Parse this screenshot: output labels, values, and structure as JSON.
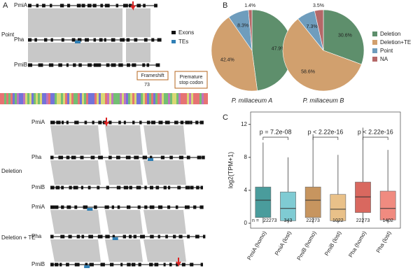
{
  "panel_a": {
    "label": "A",
    "groups": [
      {
        "name": "Point",
        "tracks": [
          "PmiA",
          "Pha",
          "PmiB"
        ]
      },
      {
        "name": "Deletion",
        "tracks": [
          "PmiA",
          "Pha",
          "PmiB"
        ]
      },
      {
        "name": "Deletion + TE",
        "tracks": [
          "PmiA",
          "Pha",
          "PmiB"
        ]
      }
    ],
    "legend": [
      "Exons",
      "TEs"
    ],
    "callouts": [
      "Frameshift",
      "Premature stop codon"
    ],
    "position": "73"
  },
  "chart_data": [
    {
      "type": "pie",
      "label": "B",
      "categories": [
        "Deletion",
        "Deletion+TE",
        "Point",
        "NA"
      ],
      "colors": [
        "#5e8f6c",
        "#d1a06e",
        "#6f9dbd",
        "#b56868"
      ],
      "series": [
        {
          "name": "P. miliaceum A",
          "values": [
            47.9,
            42.4,
            8.3,
            1.4
          ],
          "value_labels": [
            "47.9%",
            "42.4%",
            "8.3%",
            "1.4%"
          ]
        },
        {
          "name": "P. miliaceum B",
          "values": [
            30.6,
            58.6,
            7.3,
            3.5
          ],
          "value_labels": [
            "30.6%",
            "58.6%",
            "7.3%",
            "3.5%"
          ]
        }
      ]
    },
    {
      "type": "box",
      "label": "C",
      "ylabel": "log2(TPM+1)",
      "categories": [
        "PmiA (homo)",
        "PmiA (lost)",
        "PmiB (homo)",
        "PmiB (lost)",
        "Pha (homo)",
        "Pha (lost)"
      ],
      "colors": [
        "#4a9c9c",
        "#7fcbd3",
        "#c7955f",
        "#e9c189",
        "#d9685f",
        "#f08b80"
      ],
      "low": [
        0,
        0,
        0,
        0,
        0,
        0
      ],
      "q1": [
        0.7,
        0.3,
        0.7,
        0.3,
        1.3,
        0.4
      ],
      "median": [
        2.8,
        1.8,
        2.8,
        1.7,
        3.2,
        1.8
      ],
      "q3": [
        4.4,
        3.8,
        4.4,
        3.5,
        5.0,
        3.9
      ],
      "high": [
        9.8,
        8.0,
        10.8,
        8.3,
        11.6,
        8.9
      ],
      "count_prefix": "n =",
      "counts": [
        22273,
        343,
        22273,
        1022,
        22273,
        1402
      ],
      "annotations": [
        {
          "text": "p = 7.2e-08",
          "between": [
            0,
            1
          ]
        },
        {
          "text": "p < 2.22e-16",
          "between": [
            2,
            3
          ]
        },
        {
          "text": "p < 2.22e-16",
          "between": [
            4,
            5
          ]
        }
      ],
      "ylim": [
        -0.6,
        13.5
      ],
      "yticks": [
        0,
        4,
        8,
        12
      ]
    }
  ]
}
